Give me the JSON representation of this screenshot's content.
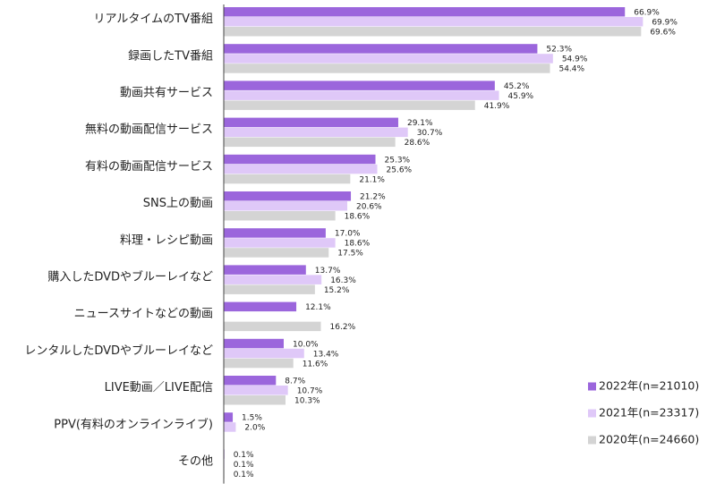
{
  "chart_data": {
    "type": "bar",
    "orientation": "horizontal",
    "categories": [
      "リアルタイムのTV番組",
      "録画したTV番組",
      "動画共有サービス",
      "無料の動画配信サービス",
      "有料の動画配信サービス",
      "SNS上の動画",
      "料理・レシピ動画",
      "購入したDVDやブルーレイなど",
      "ニュースサイトなどの動画",
      "レンタルしたDVDやブルーレイなど",
      "LIVE動画／LIVE配信",
      "PPV(有料のオンラインライブ)",
      "その他"
    ],
    "series": [
      {
        "name": "2022年(n=21010)",
        "color": "#9b66dc",
        "values": [
          66.9,
          52.3,
          45.2,
          29.1,
          25.3,
          21.2,
          17.0,
          13.7,
          12.1,
          10.0,
          8.7,
          1.5,
          0.1
        ],
        "labels": [
          "66.9%",
          "52.3%",
          "45.2%",
          "29.1%",
          "25.3%",
          "21.2%",
          "17.0%",
          "13.7%",
          "12.1%",
          "10.0%",
          "8.7%",
          "1.5%",
          "0.1%"
        ]
      },
      {
        "name": "2021年(n=23317)",
        "color": "#dfc8f8",
        "values": [
          69.9,
          54.9,
          45.9,
          30.7,
          25.6,
          20.6,
          18.6,
          16.3,
          null,
          13.4,
          10.7,
          2.0,
          0.1
        ],
        "labels": [
          "69.9%",
          "54.9%",
          "45.9%",
          "30.7%",
          "25.6%",
          "20.6%",
          "18.6%",
          "16.3%",
          "",
          "13.4%",
          "10.7%",
          "2.0%",
          "0.1%"
        ]
      },
      {
        "name": "2020年(n=24660)",
        "color": "#d4d4d4",
        "values": [
          69.6,
          54.4,
          41.9,
          28.6,
          21.1,
          18.6,
          17.5,
          15.2,
          16.2,
          11.6,
          10.3,
          null,
          0.1
        ],
        "labels": [
          "69.6%",
          "54.4%",
          "41.9%",
          "28.6%",
          "21.1%",
          "18.6%",
          "17.5%",
          "15.2%",
          "16.2%",
          "11.6%",
          "10.3%",
          "",
          "0.1%"
        ]
      }
    ],
    "xlim": [
      0,
      100
    ],
    "grid": false,
    "legend_position": "bottom-right",
    "title": "",
    "xlabel": "",
    "ylabel": ""
  }
}
